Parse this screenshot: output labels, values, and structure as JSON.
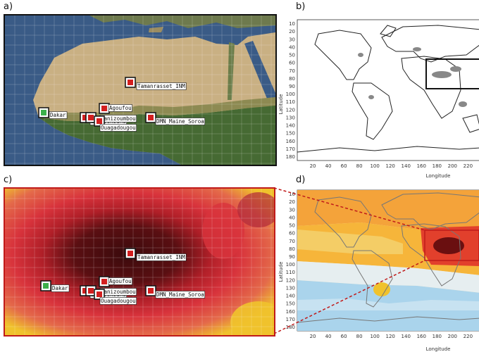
{
  "panels": {
    "a": "a)",
    "b": "b)",
    "c": "c)",
    "d": "d)"
  },
  "stations": [
    {
      "name": "Tamanrasset_INM",
      "color": "#d21f1f"
    },
    {
      "name": "Dakar",
      "color": "#3cb04a"
    },
    {
      "name": "Agoufou",
      "color": "#d21f1f"
    },
    {
      "name": "IER_Cinzana",
      "color": "#d21f1f"
    },
    {
      "name": "Banizoumbou",
      "color": "#d21f1f"
    },
    {
      "name": "Ouagadougou",
      "color": "#d21f1f"
    },
    {
      "name": "DMN_Maine_Soroa",
      "color": "#d21f1f"
    }
  ],
  "latitude_ticks": [
    "10",
    "20",
    "30",
    "40",
    "50",
    "60",
    "70",
    "80",
    "90",
    "100",
    "110",
    "120",
    "130",
    "140",
    "150",
    "160",
    "170",
    "180"
  ],
  "longitude_ticks": [
    "20",
    "40",
    "60",
    "80",
    "100",
    "120",
    "140",
    "160",
    "180",
    "200",
    "220"
  ],
  "axis": {
    "y": "Latitude",
    "x": "Longitude"
  },
  "colors": {
    "land_desert": "#c9b083",
    "vegetation": "#466a33",
    "ocean": "#3a5b86",
    "aod_dark": "#5a0f12",
    "aod_red": "#d8333c",
    "aod_yellow": "#f0c22c",
    "box_red": "#c01a1a"
  }
}
